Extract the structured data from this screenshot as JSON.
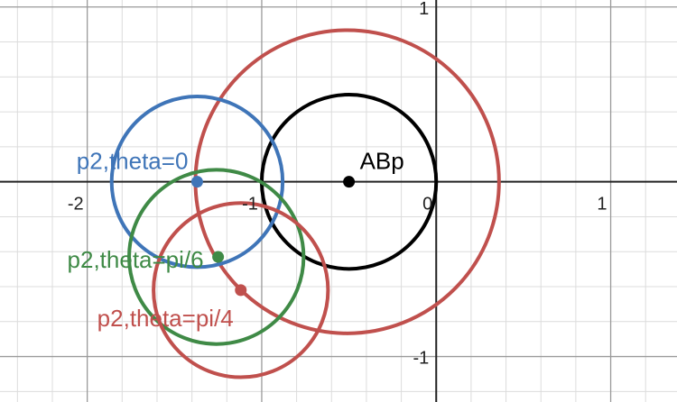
{
  "chart_data": {
    "type": "scatter",
    "title": "",
    "xlabel": "",
    "ylabel": "",
    "xlim": [
      -2.5,
      1.38
    ],
    "ylim": [
      -1.26,
      1.04
    ],
    "grid": true,
    "minor_grid_step": 0.2,
    "major_grid_step": 1,
    "x_ticks": [
      {
        "value": -2,
        "label": "-2"
      },
      {
        "value": -1,
        "label": "-1"
      },
      {
        "value": 0,
        "label": "0"
      },
      {
        "value": 1,
        "label": "1"
      }
    ],
    "y_ticks": [
      {
        "value": 1,
        "label": "1"
      },
      {
        "value": -1,
        "label": "-1"
      }
    ],
    "circles": [
      {
        "cx": -0.5,
        "cy": 0.0,
        "r": 0.5,
        "color": "#000000"
      },
      {
        "cx": -0.51,
        "cy": 0.0,
        "r": 0.87,
        "color": "#c0504d"
      },
      {
        "cx": -1.37,
        "cy": 0.0,
        "r": 0.49,
        "color": "#3f75b8"
      },
      {
        "cx": -1.26,
        "cy": -0.43,
        "r": 0.5,
        "color": "#3f8a46"
      },
      {
        "cx": -1.12,
        "cy": -0.62,
        "r": 0.5,
        "color": "#c0504d"
      }
    ],
    "points": [
      {
        "x": -0.5,
        "y": 0.0,
        "label": "ABp",
        "color": "#000000"
      },
      {
        "x": -1.37,
        "y": 0.0,
        "label": "p2,theta=0",
        "color": "#3f75b8"
      },
      {
        "x": -1.25,
        "y": -0.43,
        "label": "p2,theta=pi/6",
        "color": "#3f8a46"
      },
      {
        "x": -1.12,
        "y": -0.62,
        "label": "p2,theta=pi/4",
        "color": "#c0504d"
      }
    ]
  }
}
